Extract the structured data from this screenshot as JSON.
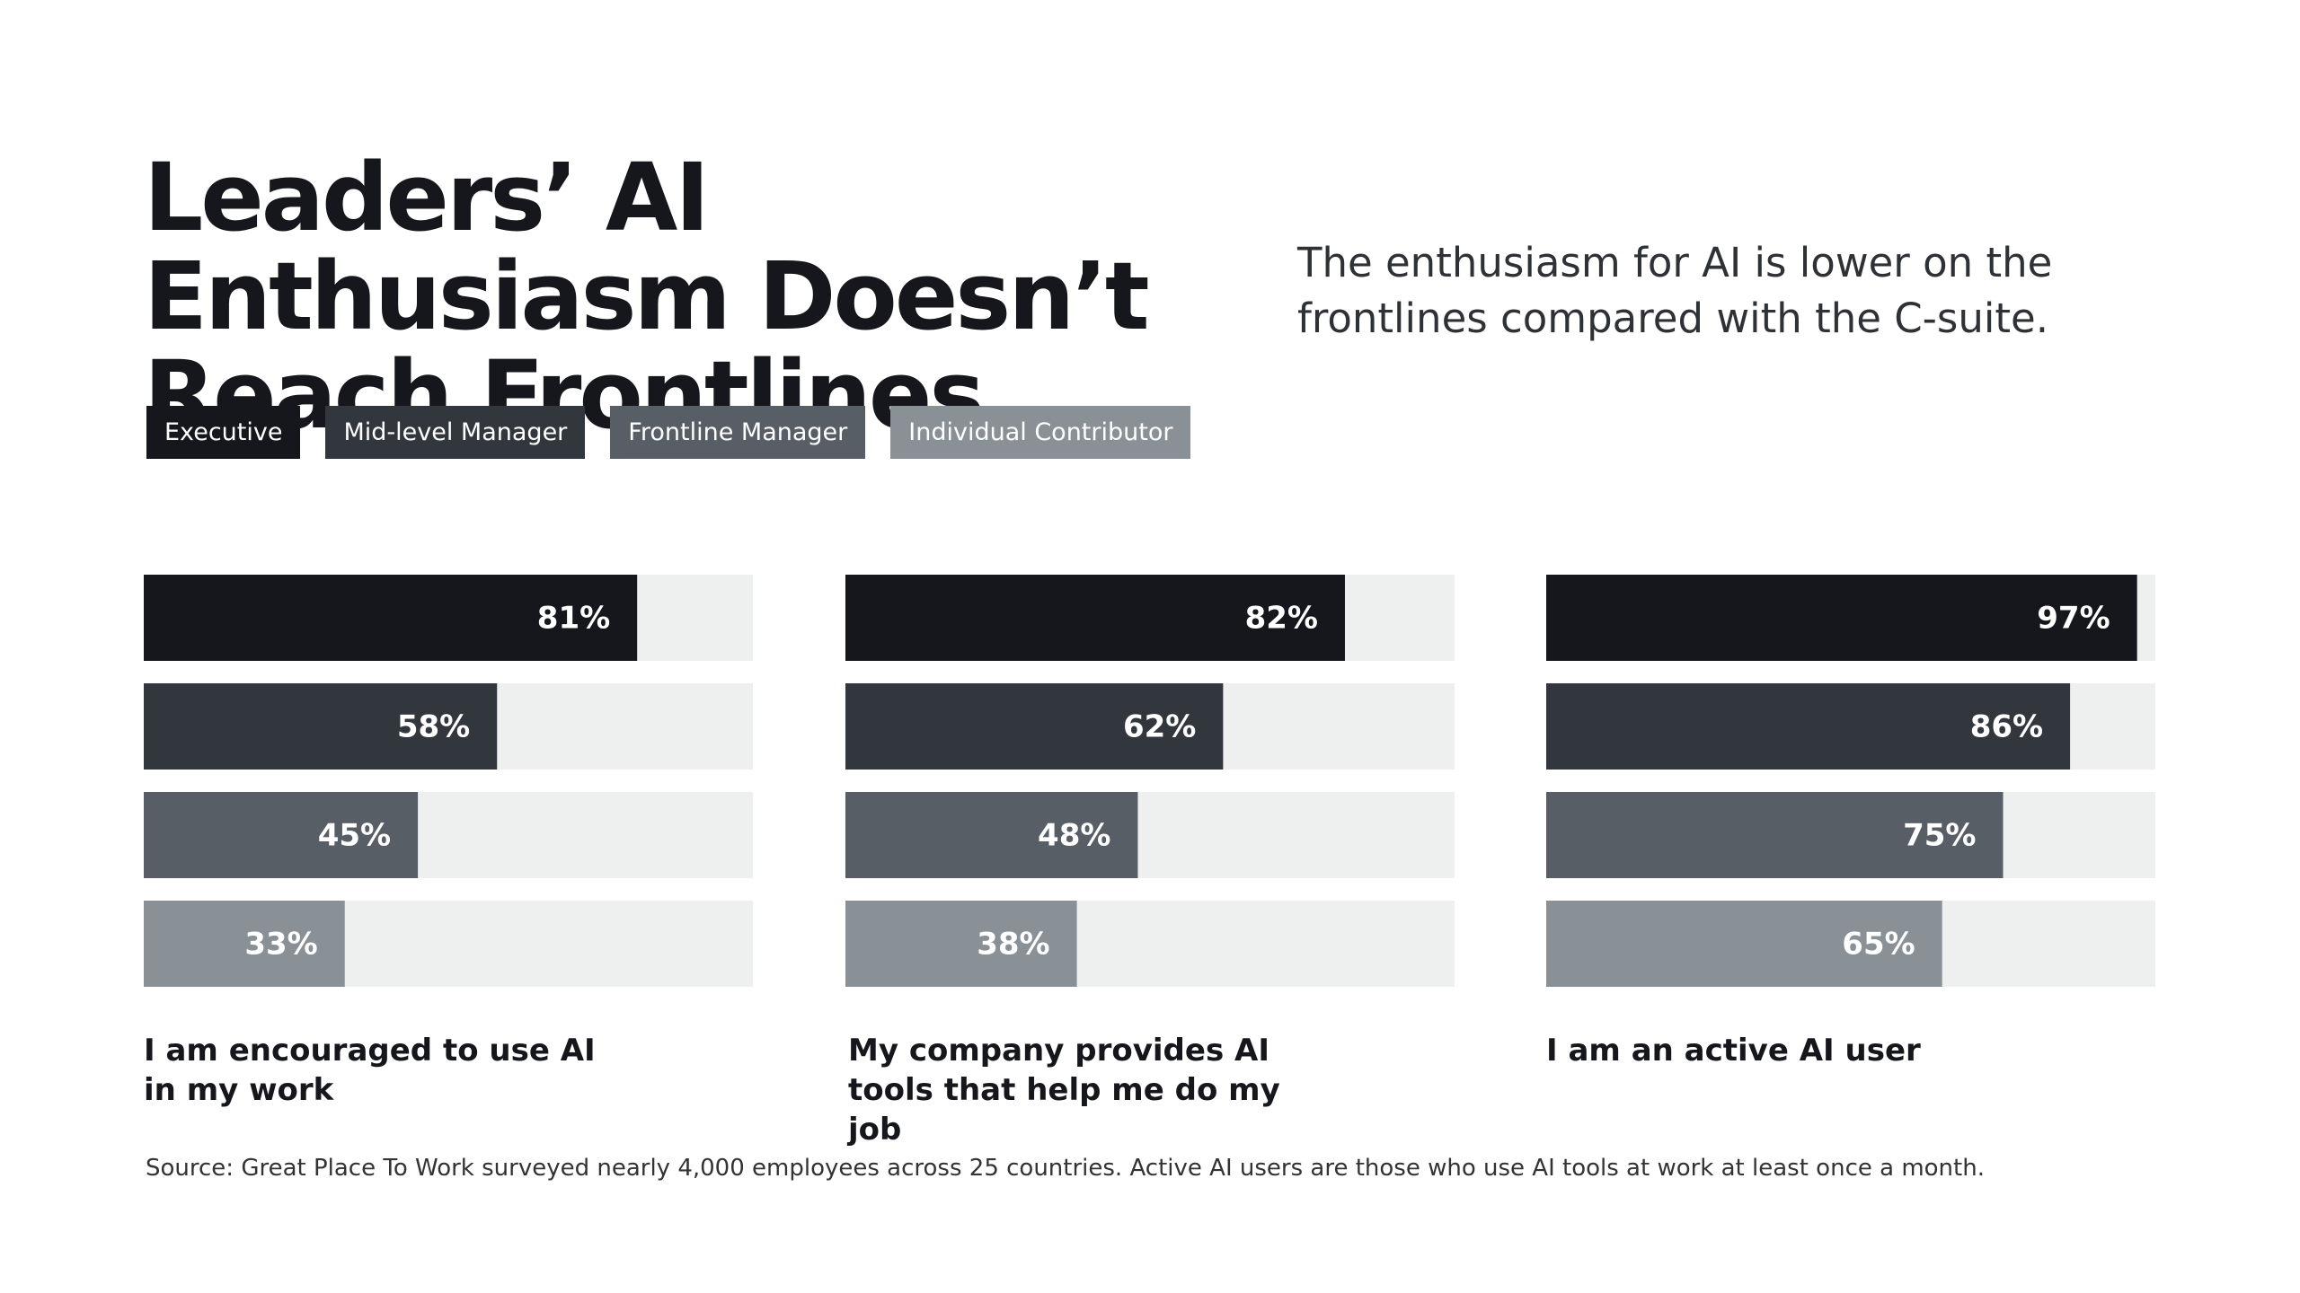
{
  "chart_data": {
    "type": "bar",
    "title": "Leaders’ AI Enthusiasm Doesn’t Reach Frontlines",
    "subtitle": "The enthusiasm for AI is lower on the frontlines compared with the C-suite.",
    "source": "Source: Great Place To Work surveyed nearly 4,000 employees across 25 countries. Active AI users are those who use AI tools at work at least once a month.",
    "categories": [
      "I am encouraged to use AI in my work",
      "My company provides AI tools that help me do my job",
      "I am an active AI user"
    ],
    "xlim": [
      0,
      100
    ],
    "series": [
      {
        "name": "Executive",
        "color": "#15171c",
        "values": [
          81,
          82,
          97
        ],
        "value_labels": [
          "81%",
          "82%",
          "97%"
        ]
      },
      {
        "name": "Mid-level Manager",
        "color": "#32363d",
        "values": [
          58,
          62,
          86
        ],
        "value_labels": [
          "58%",
          "62%",
          "86%"
        ]
      },
      {
        "name": "Frontline Manager",
        "color": "#585e66",
        "values": [
          45,
          48,
          75
        ],
        "value_labels": [
          "45%",
          "48%",
          "75%"
        ]
      },
      {
        "name": "Individual Contributor",
        "color": "#8a9196",
        "values": [
          33,
          38,
          65
        ],
        "value_labels": [
          "33%",
          "38%",
          "65%"
        ]
      }
    ]
  }
}
